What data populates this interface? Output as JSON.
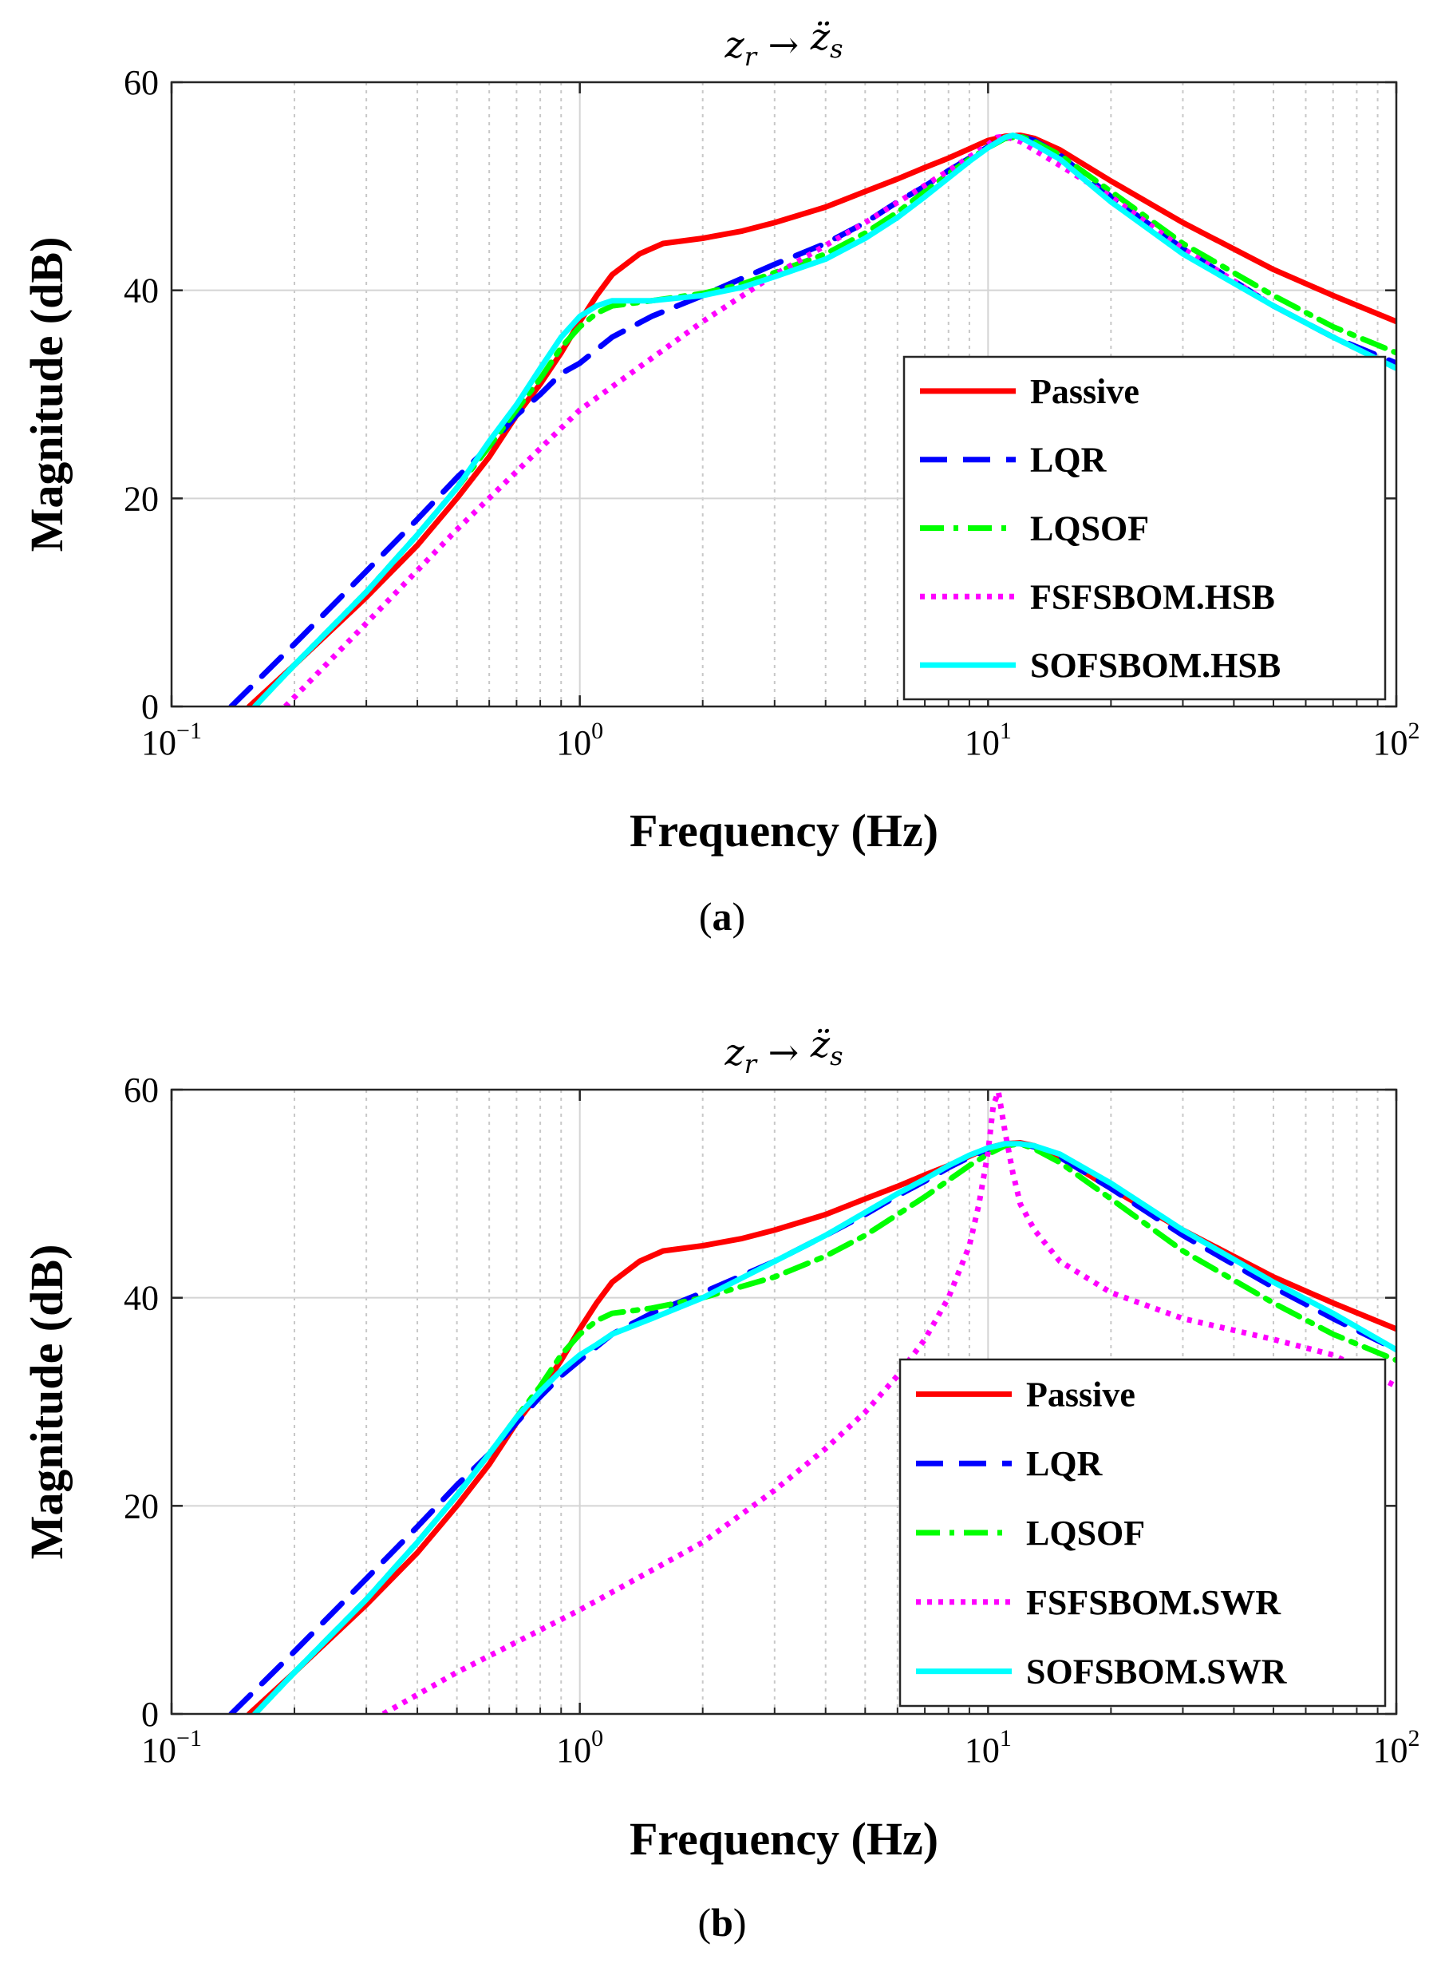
{
  "chart_data": [
    {
      "type": "line",
      "panel": "a",
      "title": "z_r → z̈_s",
      "title_parts": {
        "base1": "z",
        "sub1": "r",
        "arrow": "→",
        "base2": "z̈",
        "sub2": "s"
      },
      "caption": {
        "open": "(",
        "letter": "a",
        "close": ")"
      },
      "xlabel": "Frequency (Hz)",
      "ylabel": "Magnitude (dB)",
      "xscale": "log",
      "xlim": [
        0.1,
        100
      ],
      "ylim": [
        0,
        60
      ],
      "xticks": [
        {
          "base": "10",
          "exp": "−1"
        },
        {
          "base": "10",
          "exp": "0"
        },
        {
          "base": "10",
          "exp": "1"
        },
        {
          "base": "10",
          "exp": "2"
        }
      ],
      "yticks": [
        "0",
        "20",
        "40",
        "60"
      ],
      "grid": true,
      "legend_position": "bottom-right",
      "series": [
        {
          "name": "Passive",
          "color": "#ff0000",
          "dash": "solid",
          "x": [
            0.155,
            0.2,
            0.3,
            0.4,
            0.5,
            0.6,
            0.7,
            0.8,
            0.9,
            1.0,
            1.1,
            1.2,
            1.4,
            1.6,
            2,
            2.5,
            3,
            4,
            5,
            6,
            7,
            8,
            9,
            10,
            11,
            12,
            13,
            15,
            20,
            30,
            50,
            70,
            100
          ],
          "y": [
            0,
            4,
            10.5,
            15.5,
            20,
            24,
            28,
            31,
            34,
            37,
            39.5,
            41.5,
            43.5,
            44.5,
            45,
            45.7,
            46.5,
            48,
            49.5,
            50.7,
            51.8,
            52.7,
            53.6,
            54.4,
            54.8,
            54.9,
            54.6,
            53.5,
            50.5,
            46.5,
            42,
            39.5,
            37
          ]
        },
        {
          "name": "LQR",
          "color": "#0000ff",
          "dash": "dashed",
          "x": [
            0.14,
            0.2,
            0.3,
            0.4,
            0.5,
            0.6,
            0.7,
            0.8,
            0.9,
            1.0,
            1.2,
            1.5,
            2,
            3,
            4,
            5,
            6,
            7,
            8,
            9,
            10,
            11,
            12,
            13,
            15,
            20,
            30,
            50,
            70,
            100
          ],
          "y": [
            0,
            6,
            13,
            18,
            22,
            25,
            28,
            30,
            32,
            33,
            35.5,
            37.5,
            39.5,
            42.5,
            44.5,
            46.5,
            48.5,
            50,
            51.5,
            52.7,
            53.8,
            54.6,
            54.8,
            54.4,
            53,
            49,
            44,
            38.5,
            35.5,
            33
          ]
        },
        {
          "name": "LQSOF",
          "color": "#00ff00",
          "dash": "dashdot",
          "x": [
            0.16,
            0.2,
            0.3,
            0.4,
            0.5,
            0.6,
            0.7,
            0.8,
            0.9,
            1.0,
            1.1,
            1.2,
            1.5,
            2,
            2.5,
            3,
            4,
            5,
            6,
            7,
            8,
            9,
            10,
            11,
            12,
            13,
            15,
            20,
            30,
            50,
            70,
            100
          ],
          "y": [
            0,
            4,
            11,
            16.5,
            21,
            25,
            28.5,
            31.5,
            34.5,
            36.5,
            37.8,
            38.5,
            39,
            39.7,
            40.6,
            41.7,
            43.5,
            45.5,
            47.5,
            49.5,
            51.2,
            52.6,
            53.7,
            54.6,
            54.8,
            54.3,
            53,
            49.5,
            44.5,
            39.5,
            36.5,
            34
          ]
        },
        {
          "name": "FSFSBOM.HSB",
          "color": "#ff00ff",
          "dash": "dotted",
          "x": [
            0.19,
            0.3,
            0.5,
            1,
            2,
            3,
            5,
            8,
            10,
            10.5,
            11,
            12,
            15,
            20,
            30,
            50,
            70,
            100
          ],
          "y": [
            0,
            8,
            17,
            28.5,
            37,
            41.5,
            46.5,
            51.5,
            54,
            54.7,
            54.8,
            54.3,
            52,
            49,
            44,
            38.5,
            35.5,
            32.5
          ]
        },
        {
          "name": "SOFSBOM.HSB",
          "color": "#00ffff",
          "dash": "solid",
          "x": [
            0.16,
            0.2,
            0.3,
            0.4,
            0.5,
            0.6,
            0.7,
            0.8,
            0.9,
            1.0,
            1.1,
            1.2,
            1.5,
            2,
            2.5,
            3,
            4,
            5,
            6,
            7,
            8,
            9,
            10,
            11,
            11.5,
            12,
            13,
            15,
            20,
            30,
            50,
            70,
            100
          ],
          "y": [
            0,
            4,
            11,
            16.5,
            21,
            25.5,
            29,
            32.5,
            35.5,
            37.5,
            38.5,
            39,
            39,
            39.5,
            40.3,
            41.3,
            43,
            45,
            47,
            49,
            50.8,
            52.4,
            53.7,
            54.7,
            54.9,
            54.7,
            54,
            52.6,
            48.5,
            43.5,
            38.5,
            35.5,
            32.5
          ]
        }
      ]
    },
    {
      "type": "line",
      "panel": "b",
      "title": "z_r → z̈_s",
      "title_parts": {
        "base1": "z",
        "sub1": "r",
        "arrow": "→",
        "base2": "z̈",
        "sub2": "s"
      },
      "caption": {
        "open": "(",
        "letter": "b",
        "close": ")"
      },
      "xlabel": "Frequency (Hz)",
      "ylabel": "Magnitude (dB)",
      "xscale": "log",
      "xlim": [
        0.1,
        100
      ],
      "ylim": [
        0,
        60
      ],
      "xticks": [
        {
          "base": "10",
          "exp": "−1"
        },
        {
          "base": "10",
          "exp": "0"
        },
        {
          "base": "10",
          "exp": "1"
        },
        {
          "base": "10",
          "exp": "2"
        }
      ],
      "yticks": [
        "0",
        "20",
        "40",
        "60"
      ],
      "grid": true,
      "legend_position": "bottom-right",
      "series": [
        {
          "name": "Passive",
          "color": "#ff0000",
          "dash": "solid",
          "x": [
            0.155,
            0.2,
            0.3,
            0.4,
            0.5,
            0.6,
            0.7,
            0.8,
            0.9,
            1.0,
            1.1,
            1.2,
            1.4,
            1.6,
            2,
            2.5,
            3,
            4,
            5,
            6,
            7,
            8,
            9,
            10,
            11,
            12,
            13,
            15,
            20,
            30,
            50,
            70,
            100
          ],
          "y": [
            0,
            4,
            10.5,
            15.5,
            20,
            24,
            28,
            31,
            34,
            37,
            39.5,
            41.5,
            43.5,
            44.5,
            45,
            45.7,
            46.5,
            48,
            49.5,
            50.7,
            51.8,
            52.7,
            53.6,
            54.4,
            54.8,
            54.9,
            54.6,
            53.5,
            50.5,
            46.5,
            42,
            39.5,
            37
          ]
        },
        {
          "name": "LQR",
          "color": "#0000ff",
          "dash": "dashed",
          "x": [
            0.14,
            0.2,
            0.3,
            0.4,
            0.5,
            0.6,
            0.7,
            0.8,
            0.9,
            1.0,
            1.2,
            1.5,
            2,
            3,
            4,
            5,
            6,
            7,
            8,
            9,
            10,
            11,
            12,
            13,
            15,
            20,
            30,
            50,
            70,
            100
          ],
          "y": [
            0,
            6,
            13,
            18,
            22,
            25,
            28,
            30.5,
            32.5,
            34,
            36.5,
            38.5,
            40.5,
            43.5,
            46,
            48,
            49.8,
            51.2,
            52.5,
            53.5,
            54.2,
            54.7,
            54.8,
            54.5,
            53.5,
            50.5,
            46,
            41,
            38,
            35
          ]
        },
        {
          "name": "LQSOF",
          "color": "#00ff00",
          "dash": "dashdot",
          "x": [
            0.16,
            0.2,
            0.3,
            0.4,
            0.5,
            0.6,
            0.7,
            0.8,
            0.9,
            1.0,
            1.1,
            1.2,
            1.5,
            2,
            3,
            4,
            5,
            6,
            7,
            8,
            9,
            10,
            11,
            12,
            13,
            15,
            20,
            30,
            50,
            70,
            100
          ],
          "y": [
            0,
            4,
            11,
            16.5,
            21,
            25,
            28.5,
            31.5,
            34.5,
            36.5,
            37.8,
            38.5,
            39,
            40,
            42,
            44,
            46,
            48,
            49.7,
            51.3,
            52.7,
            53.8,
            54.6,
            54.8,
            54.3,
            53,
            49.5,
            44.5,
            39.5,
            36.5,
            34
          ]
        },
        {
          "name": "FSFSBOM.SWR",
          "color": "#ff00ff",
          "dash": "dotted",
          "x": [
            0.33,
            0.5,
            1,
            2,
            3,
            4,
            5,
            6,
            7,
            8,
            9,
            9.5,
            10,
            10.3,
            10.6,
            11,
            11.5,
            12,
            13,
            15,
            20,
            30,
            50,
            70,
            100
          ],
          "y": [
            0,
            4,
            10,
            16.5,
            21.5,
            25.5,
            29,
            32.5,
            36,
            40,
            45,
            49,
            54,
            58.5,
            59.8,
            56,
            52,
            49,
            46.5,
            43.5,
            40.5,
            38,
            36,
            34.5,
            31.5
          ]
        },
        {
          "name": "SOFSBOM.SWR",
          "color": "#00ffff",
          "dash": "solid",
          "x": [
            0.16,
            0.2,
            0.3,
            0.4,
            0.5,
            0.6,
            0.7,
            0.8,
            0.9,
            1.0,
            1.1,
            1.2,
            1.5,
            2,
            3,
            4,
            5,
            6,
            7,
            8,
            9,
            10,
            11,
            12,
            13,
            15,
            20,
            30,
            50,
            70,
            100
          ],
          "y": [
            0,
            4,
            11,
            16.5,
            21,
            25,
            28.5,
            31,
            33,
            34.5,
            35.5,
            36.5,
            38,
            40,
            43.5,
            46,
            48.2,
            50,
            51.4,
            52.7,
            53.7,
            54.4,
            54.8,
            54.8,
            54.6,
            53.8,
            51,
            46.5,
            41.5,
            38.5,
            35
          ]
        }
      ]
    }
  ]
}
